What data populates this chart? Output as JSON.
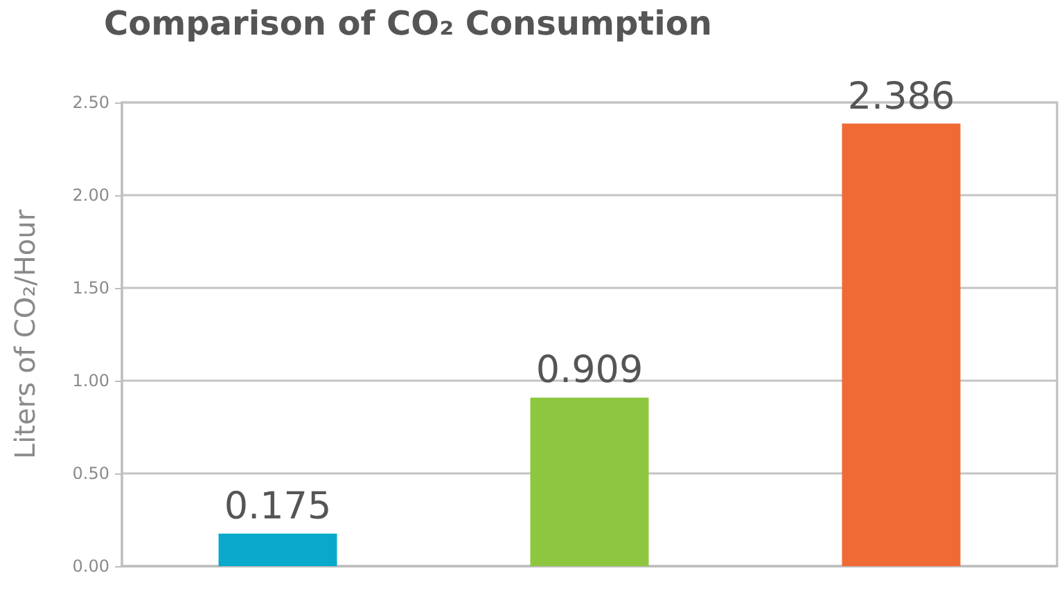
{
  "chart_data": {
    "type": "bar",
    "title": "Comparison of CO₂ Consumption",
    "ylabel": "Liters of CO₂/Hour",
    "categories": [
      null,
      null,
      null
    ],
    "values": [
      0.175,
      0.909,
      2.386
    ],
    "colors": [
      "#0aa9cb",
      "#8dc63f",
      "#f06a35"
    ],
    "ylim": [
      0,
      2.5
    ],
    "yticks": [
      {
        "value": 0,
        "label": "0.00"
      },
      {
        "value": 0.5,
        "label": "0.50"
      },
      {
        "value": 1,
        "label": "1.00"
      },
      {
        "value": 1.5,
        "label": "1.50"
      },
      {
        "value": 2,
        "label": "2.00"
      },
      {
        "value": 2.5,
        "label": "2.50"
      }
    ],
    "grid": "y",
    "data_labels": true
  }
}
